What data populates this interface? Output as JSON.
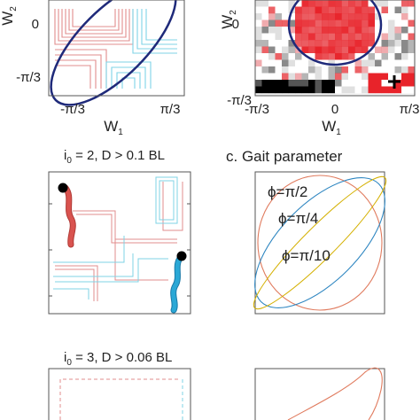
{
  "panel_a": {
    "y_tick_0": "0",
    "y_tick_1": "-π/3",
    "x_tick_0": "-π/3",
    "x_tick_1": "π/3",
    "x_label": "W",
    "x_label_sub": "1",
    "y_label": "W",
    "y_label_sub": "2",
    "colors": {
      "red_path": "#e28c8c",
      "cyan_path": "#7fd3e6",
      "ellipse": "#1f2a7a"
    }
  },
  "panel_b": {
    "y_tick_0": "0",
    "y_tick_1": "-π/3",
    "x_tick_0": "-π/3",
    "x_tick_1": "0",
    "x_tick_2": "π/3",
    "x_label": "W",
    "x_label_sub": "1",
    "y_label": "W",
    "y_label_sub": "2",
    "colors": {
      "hot": "#e8232a",
      "ellipse": "#1f2a7a"
    }
  },
  "panel_c_left": {
    "title_prefix": "i",
    "title_sub": "0",
    "title_rest": " = 2, D > 0.1 BL",
    "colors": {
      "red_snake": "#d9534f",
      "blue_snake": "#2aa8d6",
      "head": "#000000"
    }
  },
  "panel_c_right": {
    "title": "c. Gait parameter",
    "labels": [
      {
        "text": "ϕ=π/2",
        "color": "#e07b5e"
      },
      {
        "text": "ϕ=π/4",
        "color": "#2e86c1"
      },
      {
        "text": "ϕ=π/10",
        "color": "#d4b000"
      }
    ]
  },
  "panel_d_left": {
    "title_prefix": "i",
    "title_sub": "0",
    "title_rest": " = 3, D > 0.06 BL"
  }
}
